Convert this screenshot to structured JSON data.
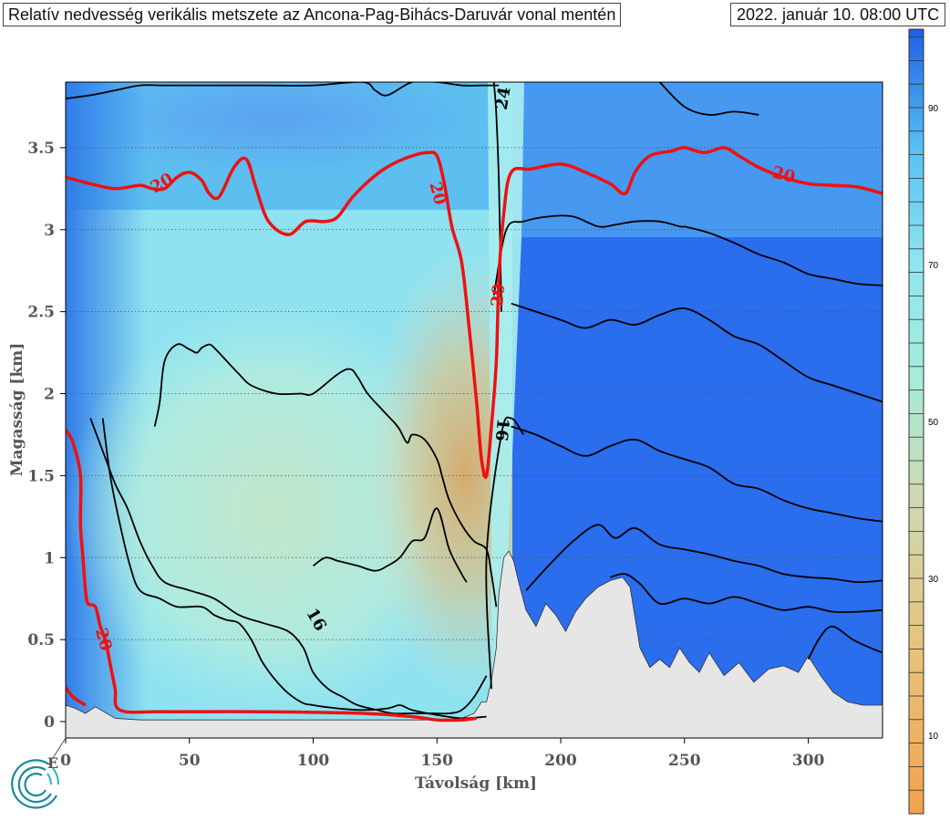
{
  "header": {
    "title": "Relatív nedvesség verikális metszete az Ancona-Pag-Bihács-Daruvár vonal mentén",
    "timestamp": "2022. január 10. 08:00 UTC"
  },
  "colors": {
    "moist": "#1f5fe8",
    "mid": "#8fe6f0",
    "dry": "#f2a24c",
    "terrain": "#e6e6e6",
    "red_contour": "#ee1111",
    "black_contour": "#000000"
  },
  "chart_data": {
    "type": "heatmap",
    "title": "Relatív nedvesség verikális metszete az Ancona-Pag-Bihács-Daruvár vonal mentén",
    "xlabel": "Távolság [km]",
    "ylabel": "Magasság [km]",
    "xlim": [
      0,
      330
    ],
    "ylim": [
      -0.1,
      3.9
    ],
    "x_ticks": [
      0,
      50,
      100,
      150,
      200,
      250,
      300
    ],
    "y_ticks": [
      0,
      0.5,
      1,
      1.5,
      2,
      2.5,
      3,
      3.5
    ],
    "x_tick_labels": [
      "0",
      "50",
      "100",
      "150",
      "200",
      "250",
      "300"
    ],
    "y_tick_labels": [
      "0",
      "0.5",
      "1",
      "1.5",
      "2",
      "2.5",
      "3",
      "3.5"
    ],
    "start_label": "E",
    "grid": "horizontal dotted",
    "colorbar": {
      "min": 0,
      "max": 100,
      "step": 3,
      "tick_values": [
        10,
        30,
        50,
        70,
        90
      ],
      "tick_labels": [
        "10",
        "30",
        "50",
        "70",
        "90"
      ],
      "colormap": [
        "#f2a24c",
        "#e8c27a",
        "#cfd8b0",
        "#a6ecd8",
        "#8fe6f0",
        "#55c0f2",
        "#1f5fe8"
      ]
    },
    "terrain": {
      "x": [
        0,
        4,
        8,
        12,
        20,
        30,
        60,
        100,
        130,
        150,
        160,
        165,
        168,
        170,
        172,
        174,
        175,
        177,
        179,
        181,
        183,
        186,
        190,
        194,
        198,
        202,
        206,
        210,
        215,
        220,
        225,
        228,
        232,
        236,
        240,
        244,
        248,
        252,
        256,
        260,
        266,
        272,
        278,
        284,
        290,
        296,
        300,
        305,
        310,
        316,
        322,
        326,
        330
      ],
      "y": [
        0.1,
        0.08,
        0.05,
        0.09,
        0.02,
        0.01,
        0.01,
        0.01,
        0.01,
        0.01,
        0.02,
        0.05,
        0.12,
        0.12,
        0.25,
        0.45,
        0.78,
        1.0,
        1.04,
        0.98,
        0.85,
        0.68,
        0.58,
        0.72,
        0.65,
        0.55,
        0.67,
        0.75,
        0.82,
        0.86,
        0.88,
        0.82,
        0.45,
        0.33,
        0.38,
        0.33,
        0.45,
        0.36,
        0.3,
        0.42,
        0.28,
        0.36,
        0.24,
        0.32,
        0.34,
        0.3,
        0.4,
        0.28,
        0.18,
        0.12,
        0.1,
        0.1,
        0.1
      ]
    },
    "red_contours": [
      {
        "level": 20,
        "x": [
          0,
          10,
          20,
          30,
          35,
          40,
          45,
          50,
          55,
          58,
          62,
          68,
          73,
          77,
          82,
          90,
          97,
          105,
          110,
          116,
          125,
          132,
          140,
          146,
          150,
          153,
          156,
          160,
          163,
          166,
          168,
          170,
          172,
          174,
          175,
          177,
          180,
          188,
          200,
          210,
          220,
          226,
          230,
          236,
          245,
          250,
          258,
          266,
          272,
          280,
          290,
          300,
          310,
          320,
          330
        ],
        "y": [
          3.32,
          3.28,
          3.25,
          3.27,
          3.25,
          3.25,
          3.32,
          3.35,
          3.3,
          3.22,
          3.2,
          3.38,
          3.43,
          3.25,
          3.05,
          2.97,
          3.05,
          3.05,
          3.08,
          3.2,
          3.33,
          3.4,
          3.45,
          3.47,
          3.45,
          3.28,
          3.02,
          2.8,
          2.4,
          1.95,
          1.6,
          1.5,
          1.8,
          2.2,
          2.7,
          3.1,
          3.35,
          3.37,
          3.4,
          3.35,
          3.28,
          3.22,
          3.35,
          3.45,
          3.48,
          3.5,
          3.47,
          3.5,
          3.45,
          3.38,
          3.32,
          3.28,
          3.27,
          3.26,
          3.22
        ]
      },
      {
        "level": 20,
        "x": [
          0,
          3,
          6,
          6,
          7,
          8,
          9,
          12,
          14,
          16,
          18,
          20,
          22,
          40,
          80,
          120,
          140,
          150,
          160,
          166
        ],
        "y": [
          1.78,
          1.7,
          1.5,
          1.2,
          1.0,
          0.8,
          0.72,
          0.7,
          0.58,
          0.5,
          0.35,
          0.2,
          0.07,
          0.06,
          0.06,
          0.05,
          0.03,
          0.01,
          0.01,
          0.02
        ]
      },
      {
        "level": 20,
        "x": [
          0,
          3,
          8
        ],
        "y": [
          0.21,
          0.15,
          0.1
        ]
      }
    ],
    "black_contours": [
      {
        "level": 16,
        "x": [
          0,
          10,
          20,
          30,
          40,
          60,
          80,
          100,
          120,
          125,
          130,
          140,
          150,
          160,
          168,
          172,
          175
        ],
        "y": [
          3.8,
          3.82,
          3.85,
          3.88,
          3.88,
          3.88,
          3.88,
          3.88,
          3.9,
          3.85,
          3.82,
          3.9,
          3.9,
          3.88,
          3.88,
          3.88,
          3.88
        ]
      },
      {
        "level": 22,
        "x": [
          173,
          178,
          185,
          195,
          205,
          215,
          222,
          230,
          240,
          248,
          250
        ],
        "y": [
          2.6,
          3.0,
          3.05,
          3.08,
          3.08,
          3.02,
          3.03,
          3.05,
          3.05,
          3.02,
          3.02
        ]
      },
      {
        "level": 22,
        "x": [
          250,
          260,
          270,
          280,
          290,
          300,
          310,
          320,
          330
        ],
        "y": [
          3.02,
          2.98,
          2.92,
          2.85,
          2.8,
          2.73,
          2.7,
          2.67,
          2.66
        ]
      },
      {
        "level": 24,
        "x": [
          240,
          250,
          260,
          270,
          280
        ],
        "y": [
          3.9,
          3.75,
          3.7,
          3.72,
          3.7
        ]
      },
      {
        "level": 18,
        "x": [
          180,
          190,
          200,
          210,
          220,
          230,
          240,
          250,
          260,
          270,
          280,
          290,
          300,
          310,
          320,
          330
        ],
        "y": [
          2.55,
          2.5,
          2.45,
          2.4,
          2.45,
          2.42,
          2.48,
          2.52,
          2.45,
          2.35,
          2.3,
          2.2,
          2.1,
          2.05,
          2.0,
          1.95
        ]
      },
      {
        "level": 14,
        "x": [
          180,
          190,
          200,
          210,
          220,
          230,
          240,
          250,
          260,
          270,
          280,
          290,
          300,
          310,
          320,
          330
        ],
        "y": [
          1.8,
          1.75,
          1.68,
          1.62,
          1.68,
          1.72,
          1.65,
          1.6,
          1.55,
          1.45,
          1.42,
          1.35,
          1.3,
          1.27,
          1.24,
          1.22
        ]
      },
      {
        "level": 12,
        "x": [
          186,
          195,
          205,
          215,
          222,
          230,
          240,
          250,
          260,
          270,
          280,
          290,
          300,
          310,
          320,
          330
        ],
        "y": [
          0.8,
          0.95,
          1.1,
          1.2,
          1.12,
          1.18,
          1.08,
          1.05,
          1.02,
          0.98,
          0.95,
          0.9,
          0.88,
          0.87,
          0.85,
          0.86
        ]
      },
      {
        "level": 10,
        "x": [
          220,
          226,
          232,
          240,
          250,
          260,
          270,
          280,
          290,
          300,
          310,
          320,
          330
        ],
        "y": [
          0.88,
          0.9,
          0.84,
          0.72,
          0.75,
          0.72,
          0.76,
          0.72,
          0.68,
          0.7,
          0.67,
          0.67,
          0.68
        ]
      },
      {
        "level": 8,
        "x": [
          300,
          305,
          310,
          318,
          325,
          330
        ],
        "y": [
          0.38,
          0.52,
          0.58,
          0.5,
          0.45,
          0.42
        ]
      },
      {
        "level": 16,
        "x": [
          185,
          180,
          176,
          170,
          172
        ],
        "y": [
          1.75,
          1.85,
          1.75,
          1.0,
          0.2
        ]
      },
      {
        "level": 10,
        "x": [
          36,
          38,
          40,
          45,
          50,
          53,
          55,
          58,
          60,
          65,
          70,
          75,
          85,
          95,
          100,
          110,
          115,
          118,
          122,
          128,
          133,
          135,
          138,
          140,
          145,
          150,
          152
        ],
        "y": [
          1.8,
          1.95,
          2.2,
          2.3,
          2.27,
          2.25,
          2.28,
          2.3,
          2.28,
          2.2,
          2.12,
          2.05,
          2.0,
          2.0,
          2.0,
          2.12,
          2.15,
          2.1,
          2.0,
          1.9,
          1.82,
          1.78,
          1.7,
          1.75,
          1.72,
          1.6,
          1.5
        ]
      },
      {
        "level": 14,
        "x": [
          152,
          155,
          160,
          165,
          170,
          172,
          174
        ],
        "y": [
          1.5,
          1.35,
          1.2,
          1.1,
          1.05,
          0.9,
          0.7
        ]
      },
      {
        "level": 16,
        "x": [
          10,
          15,
          20,
          25,
          30,
          35,
          40,
          50,
          60,
          70,
          80,
          90,
          96,
          100,
          106,
          112,
          118,
          126,
          132,
          140,
          148,
          155,
          160,
          165,
          170
        ],
        "y": [
          1.85,
          1.65,
          1.45,
          1.3,
          1.1,
          0.95,
          0.85,
          0.8,
          0.75,
          0.65,
          0.6,
          0.55,
          0.45,
          0.3,
          0.2,
          0.15,
          0.1,
          0.07,
          0.05,
          0.05,
          0.05,
          0.05,
          0.07,
          0.15,
          0.28
        ]
      },
      {
        "level": 16,
        "x": [
          100,
          105,
          110,
          118,
          125,
          130,
          135,
          140,
          145,
          150,
          155,
          160,
          162
        ],
        "y": [
          0.95,
          1.0,
          0.98,
          0.95,
          0.92,
          0.95,
          1.0,
          1.1,
          1.12,
          1.3,
          1.05,
          0.9,
          0.85
        ]
      },
      {
        "level": 12,
        "x": [
          15,
          18,
          22,
          26,
          30,
          38,
          45,
          55,
          60,
          65,
          70,
          75,
          80,
          88,
          95,
          100,
          110,
          120,
          130,
          135,
          140,
          150,
          160,
          170
        ],
        "y": [
          1.85,
          1.5,
          1.2,
          0.95,
          0.8,
          0.75,
          0.7,
          0.7,
          0.65,
          0.62,
          0.6,
          0.5,
          0.35,
          0.2,
          0.12,
          0.1,
          0.08,
          0.07,
          0.08,
          0.1,
          0.07,
          0.04,
          0.02,
          0.03
        ]
      },
      {
        "level": 14,
        "x": [
          173,
          174,
          175,
          176
        ],
        "y": [
          3.9,
          3.7,
          3.3,
          2.5
        ]
      }
    ],
    "contour_labels": [
      {
        "text": "20",
        "x": 39,
        "y": 3.28,
        "color": "red",
        "rotate": -30
      },
      {
        "text": "20",
        "x": 150,
        "y": 3.22,
        "color": "red",
        "rotate": 75
      },
      {
        "text": "20",
        "x": 175,
        "y": 2.6,
        "color": "red",
        "rotate": -85
      },
      {
        "text": "20",
        "x": 290,
        "y": 3.33,
        "color": "red",
        "rotate": 15
      },
      {
        "text": "20",
        "x": 15,
        "y": 0.5,
        "color": "red",
        "rotate": 75
      },
      {
        "text": "16",
        "x": 176,
        "y": 1.78,
        "color": "black",
        "rotate": 95
      },
      {
        "text": "16",
        "x": 101,
        "y": 0.62,
        "color": "black",
        "rotate": 60
      },
      {
        "text": "24",
        "x": 177,
        "y": 3.8,
        "color": "black",
        "rotate": -80
      }
    ]
  }
}
